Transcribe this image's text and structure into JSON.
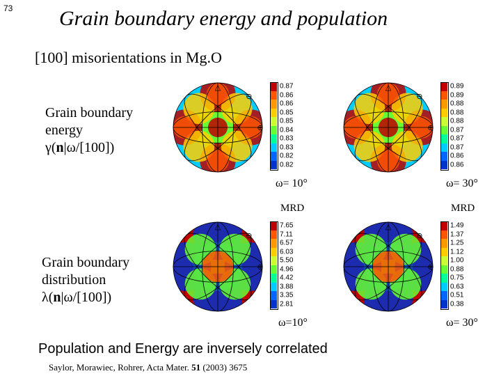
{
  "page_number": "73",
  "title": "Grain boundary energy and population",
  "subtitle": "[100] misorientations in Mg.O",
  "energy_label_l1": "Grain boundary",
  "energy_label_l2": "energy",
  "energy_label_l3": "γ(n|ω/[100])",
  "dist_label_l1": "Grain boundary",
  "dist_label_l2": "distribution",
  "dist_label_l3": "λ(n|ω/[100])",
  "omega10": "ω= 10°",
  "omega10b": "ω=10°",
  "omega30": "ω= 30°",
  "mrd": "MRD",
  "conclusion": "Population and Energy are inversely correlated",
  "citation_pre": "Saylor, Morawiec, Rohrer, Acta Mater. ",
  "citation_vol": "51",
  "citation_post": " (2003) 3675",
  "energy_chart": {
    "type": "stereographic-heat",
    "radius": 64,
    "colors_hot_to_cold": [
      "#c00000",
      "#ff5500",
      "#ffcc00",
      "#66ff33",
      "#00ccff",
      "#0033cc"
    ],
    "grid_color": "#000000"
  },
  "dist_chart": {
    "type": "stereographic-heat",
    "radius": 64,
    "colors_hot_to_cold": [
      "#c00000",
      "#ff5500",
      "#ffcc00",
      "#66ff33",
      "#00ccff",
      "#0033cc"
    ],
    "grid_color": "#000000"
  },
  "colorbar_energy_10": {
    "ticks": [
      "0.87",
      "0.86",
      "0.86",
      "0.85",
      "0.85",
      "0.84",
      "0.83",
      "0.83",
      "0.82",
      "0.82"
    ],
    "colors": [
      "#c00000",
      "#ff5500",
      "#ff9900",
      "#ffcc00",
      "#ccff33",
      "#66ff33",
      "#00ff99",
      "#00ccff",
      "#0066ff",
      "#0033cc"
    ]
  },
  "colorbar_energy_30": {
    "ticks": [
      "0.89",
      "0.89",
      "0.88",
      "0.88",
      "0.88",
      "0.87",
      "0.87",
      "0.87",
      "0.86",
      "0.86"
    ],
    "colors": [
      "#c00000",
      "#ff5500",
      "#ff9900",
      "#ffcc00",
      "#ccff33",
      "#66ff33",
      "#00ff99",
      "#00ccff",
      "#0066ff",
      "#0033cc"
    ]
  },
  "colorbar_dist_10": {
    "ticks": [
      "7.65",
      "7.11",
      "6.57",
      "6.03",
      "5.50",
      "4.96",
      "4.42",
      "3.88",
      "3.35",
      "2.81"
    ],
    "colors": [
      "#c00000",
      "#ff5500",
      "#ff9900",
      "#ffcc00",
      "#ccff33",
      "#66ff33",
      "#00ff99",
      "#00ccff",
      "#0066ff",
      "#0033cc"
    ]
  },
  "colorbar_dist_30": {
    "ticks": [
      "1.49",
      "1.37",
      "1.25",
      "1.12",
      "1.00",
      "0.88",
      "0.75",
      "0.63",
      "0.51",
      "0.38"
    ],
    "colors": [
      "#c00000",
      "#ff5500",
      "#ff9900",
      "#ffcc00",
      "#ccff33",
      "#66ff33",
      "#00ff99",
      "#00ccff",
      "#0066ff",
      "#0033cc"
    ]
  }
}
